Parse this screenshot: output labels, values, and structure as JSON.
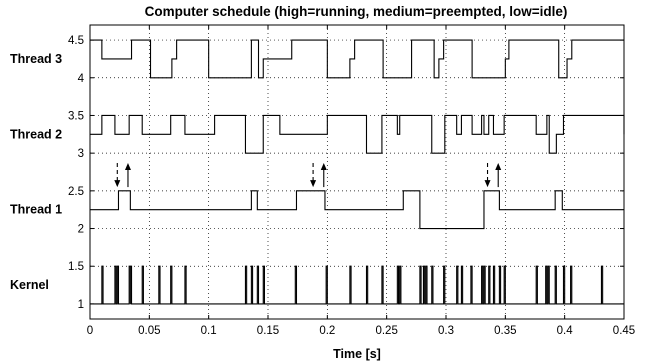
{
  "chart_data": {
    "type": "line",
    "title": "Computer schedule (high=running, medium=preempted, low=idle)",
    "xlabel": "Time [s]",
    "ylabel": "",
    "xlim": [
      0,
      0.45
    ],
    "ylim": [
      0.8,
      4.7
    ],
    "x_ticks": [
      "0",
      "0.05",
      "0.1",
      "0.15",
      "0.2",
      "0.25",
      "0.3",
      "0.35",
      "0.4",
      "0.45"
    ],
    "y_ticks": [
      "1",
      "1.5",
      "2",
      "2.5",
      "3",
      "3.5",
      "4",
      "4.5"
    ],
    "grid": true,
    "series": [
      {
        "name": "Thread 3",
        "t": [
          0,
          0.01,
          0.035,
          0.04,
          0.051,
          0.058,
          0.069,
          0.073,
          0.1,
          0.136,
          0.142,
          0.146,
          0.17,
          0.2,
          0.219,
          0.223,
          0.227,
          0.247,
          0.271,
          0.29,
          0.294,
          0.298,
          0.322,
          0.345,
          0.35,
          0.353,
          0.357,
          0.395,
          0.402,
          0.406,
          0.41,
          0.45
        ],
        "y": [
          4.5,
          4.25,
          4.5,
          4.5,
          4.0,
          4.0,
          4.25,
          4.5,
          4.0,
          4.5,
          4.0,
          4.25,
          4.5,
          4.0,
          4.25,
          4.5,
          4.5,
          4.0,
          4.5,
          4.0,
          4.25,
          4.5,
          4.0,
          4.0,
          4.25,
          4.5,
          4.5,
          4.0,
          4.25,
          4.5,
          4.5,
          4.5
        ]
      },
      {
        "name": "Thread 2",
        "t": [
          0,
          0.01,
          0.021,
          0.033,
          0.044,
          0.068,
          0.08,
          0.105,
          0.131,
          0.146,
          0.16,
          0.169,
          0.2,
          0.233,
          0.246,
          0.259,
          0.261,
          0.288,
          0.299,
          0.309,
          0.313,
          0.322,
          0.33,
          0.332,
          0.336,
          0.34,
          0.349,
          0.376,
          0.385,
          0.387,
          0.393,
          0.399,
          0.45
        ],
        "y": [
          3.25,
          3.5,
          3.25,
          3.5,
          3.25,
          3.5,
          3.25,
          3.5,
          3.0,
          3.5,
          3.25,
          3.25,
          3.5,
          3.0,
          3.5,
          3.25,
          3.5,
          3.0,
          3.5,
          3.25,
          3.5,
          3.25,
          3.5,
          3.25,
          3.5,
          3.25,
          3.5,
          3.25,
          3.5,
          3.0,
          3.25,
          3.5,
          3.25
        ]
      },
      {
        "name": "Thread 1",
        "t": [
          0,
          0.024,
          0.034,
          0.136,
          0.141,
          0.174,
          0.198,
          0.264,
          0.278,
          0.332,
          0.335,
          0.345,
          0.392,
          0.398,
          0.45
        ],
        "y": [
          2.25,
          2.5,
          2.25,
          2.5,
          2.25,
          2.5,
          2.25,
          2.5,
          2.0,
          2.5,
          2.5,
          2.25,
          2.5,
          2.25,
          2.25
        ]
      },
      {
        "name": "Kernel",
        "pulses": [
          [
            0.01,
            0.011
          ],
          [
            0.021,
            0.022
          ],
          [
            0.023,
            0.024
          ],
          [
            0.033,
            0.034
          ],
          [
            0.034,
            0.035
          ],
          [
            0.044,
            0.045
          ],
          [
            0.058,
            0.059
          ],
          [
            0.068,
            0.069
          ],
          [
            0.08,
            0.081
          ],
          [
            0.131,
            0.132
          ],
          [
            0.136,
            0.137
          ],
          [
            0.141,
            0.142
          ],
          [
            0.146,
            0.147
          ],
          [
            0.173,
            0.174
          ],
          [
            0.199,
            0.2
          ],
          [
            0.219,
            0.22
          ],
          [
            0.233,
            0.234
          ],
          [
            0.246,
            0.247
          ],
          [
            0.259,
            0.26
          ],
          [
            0.261,
            0.262
          ],
          [
            0.278,
            0.279
          ],
          [
            0.281,
            0.282
          ],
          [
            0.283,
            0.284
          ],
          [
            0.288,
            0.289
          ],
          [
            0.298,
            0.299
          ],
          [
            0.309,
            0.31
          ],
          [
            0.313,
            0.314
          ],
          [
            0.321,
            0.322
          ],
          [
            0.33,
            0.331
          ],
          [
            0.332,
            0.333
          ],
          [
            0.336,
            0.337
          ],
          [
            0.34,
            0.341
          ],
          [
            0.345,
            0.346
          ],
          [
            0.349,
            0.35
          ],
          [
            0.376,
            0.377
          ],
          [
            0.384,
            0.385
          ],
          [
            0.386,
            0.387
          ],
          [
            0.392,
            0.393
          ],
          [
            0.399,
            0.4
          ],
          [
            0.405,
            0.406
          ],
          [
            0.431,
            0.432
          ]
        ],
        "low": 1.0,
        "high": 1.5
      }
    ],
    "row_labels": [
      {
        "text": "Thread 3",
        "y": 4.25
      },
      {
        "text": "Thread 2",
        "y": 3.25
      },
      {
        "text": "Thread 1",
        "y": 2.25
      },
      {
        "text": "Kernel",
        "y": 1.25
      }
    ],
    "arrow_pairs": [
      {
        "down_t": 0.023,
        "up_t": 0.032
      },
      {
        "down_t": 0.188,
        "up_t": 0.197
      },
      {
        "down_t": 0.335,
        "up_t": 0.344
      }
    ],
    "arrow_span": [
      2.55,
      2.87
    ]
  }
}
